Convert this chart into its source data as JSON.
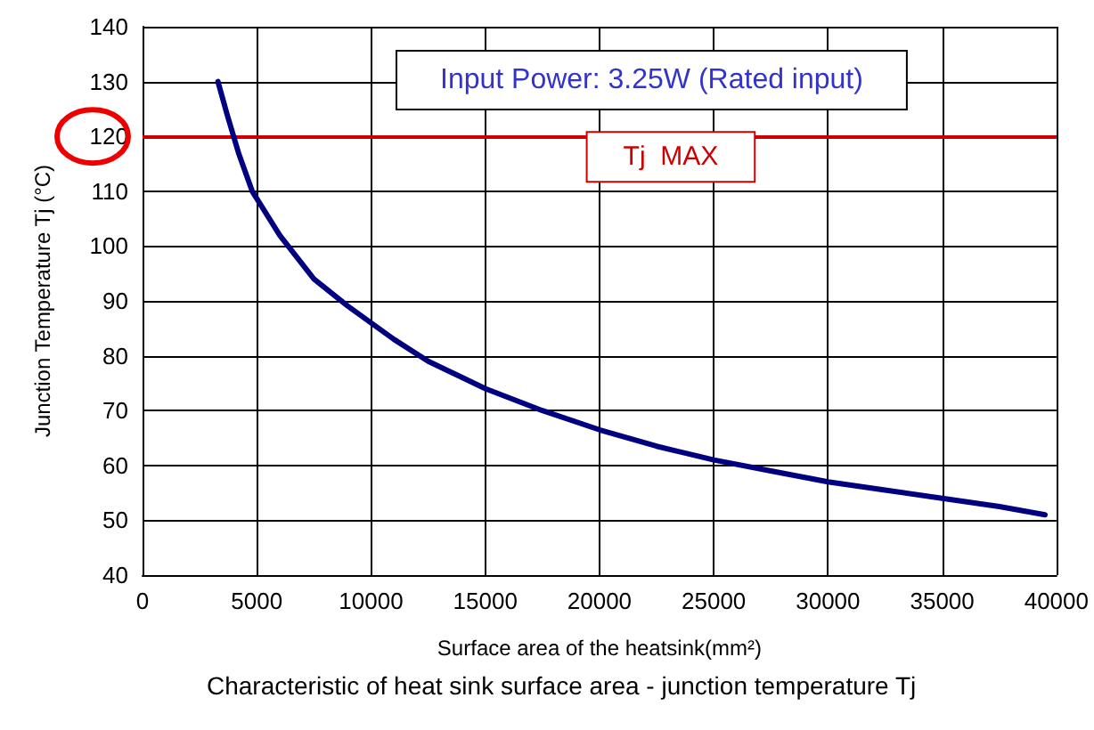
{
  "chart_data": {
    "type": "line",
    "xlabel": "Surface area of the heatsink(mm²)",
    "ylabel": "Junction Temperature Tj (°C)",
    "x": [
      3300,
      3700,
      4200,
      4800,
      6000,
      7500,
      9000,
      10000,
      11000,
      12500,
      15000,
      17500,
      20000,
      22500,
      25000,
      27500,
      30000,
      32500,
      35000,
      37500,
      39500
    ],
    "series": [
      {
        "color": "#000080",
        "values": [
          130,
          124,
          117,
          110,
          102,
          94,
          89,
          86,
          83,
          79,
          74,
          70,
          66.5,
          63.5,
          61,
          59,
          57,
          55.5,
          54,
          52.5,
          51
        ]
      }
    ],
    "xlim": [
      0,
      40000
    ],
    "xticks": [
      0,
      5000,
      10000,
      15000,
      20000,
      25000,
      30000,
      35000,
      40000
    ],
    "ylim": [
      40,
      140
    ],
    "yticks": [
      40,
      50,
      60,
      70,
      80,
      90,
      100,
      110,
      120,
      130,
      140
    ],
    "ref_lines": [
      {
        "axis": "y",
        "value": 120,
        "label": "Tj  MAX",
        "color": "#cc0000"
      }
    ],
    "annotations": [
      "Input Power: 3.25W (Rated input)",
      "Characteristic of heat sink surface area - junction temperature Tj"
    ],
    "grid": true,
    "marker": "none",
    "line_style": "solid"
  }
}
